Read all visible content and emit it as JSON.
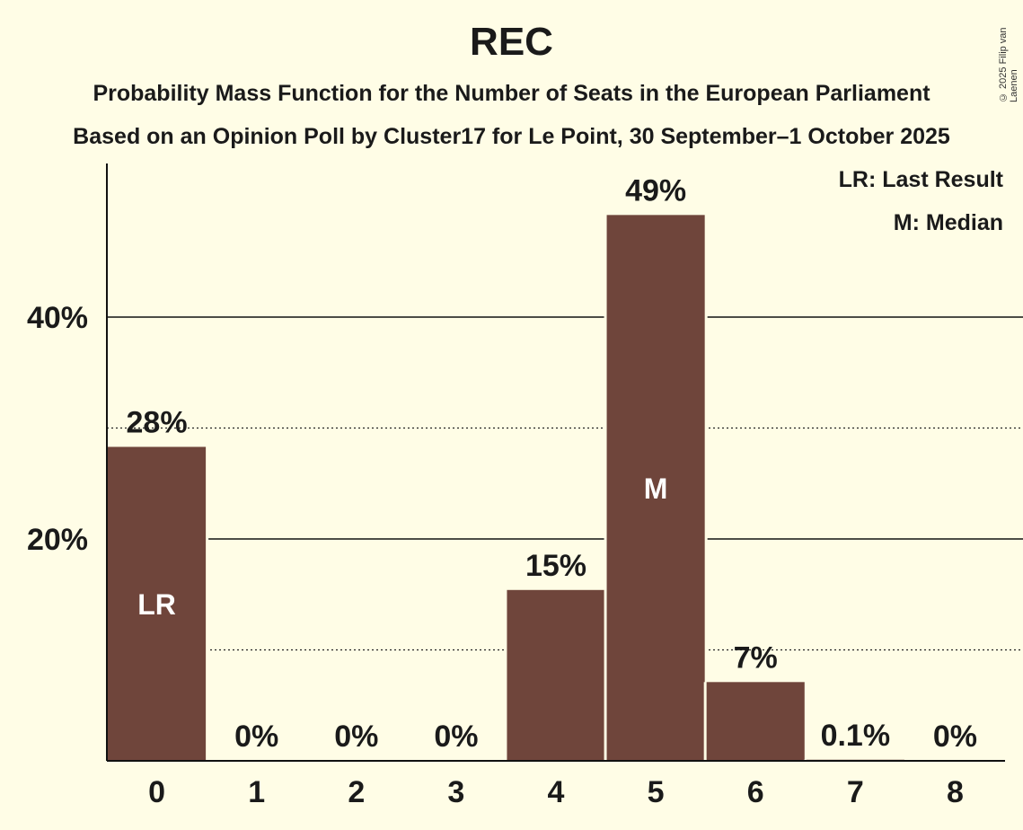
{
  "title": "REC",
  "subtitle1": "Probability Mass Function for the Number of Seats in the European Parliament",
  "subtitle2": "Based on an Opinion Poll by Cluster17 for Le Point, 30 September–1 October 2025",
  "copyright": "© 2025 Filip van Laenen",
  "legend": {
    "last_result": "LR: Last Result",
    "median": "M: Median"
  },
  "colors": {
    "bar": "#6F453B",
    "background": "#FFFDE6"
  },
  "chart_data": {
    "type": "bar",
    "categories": [
      "0",
      "1",
      "2",
      "3",
      "4",
      "5",
      "6",
      "7",
      "8"
    ],
    "values": [
      28.3,
      0,
      0,
      0,
      15.4,
      49.2,
      7.1,
      0.1,
      0
    ],
    "data_labels": [
      "28%",
      "0%",
      "0%",
      "0%",
      "15%",
      "49%",
      "7%",
      "0.1%",
      "0%"
    ],
    "bar_markers": {
      "0": "LR",
      "5": "M"
    },
    "ylim": [
      0,
      53.6
    ],
    "yticks": [
      {
        "value": 20,
        "label": "20%",
        "style": "solid"
      },
      {
        "value": 40,
        "label": "40%",
        "style": "solid"
      }
    ],
    "minor_gridlines": [
      10,
      30
    ],
    "grid": true,
    "legend_placement": "top-right"
  }
}
